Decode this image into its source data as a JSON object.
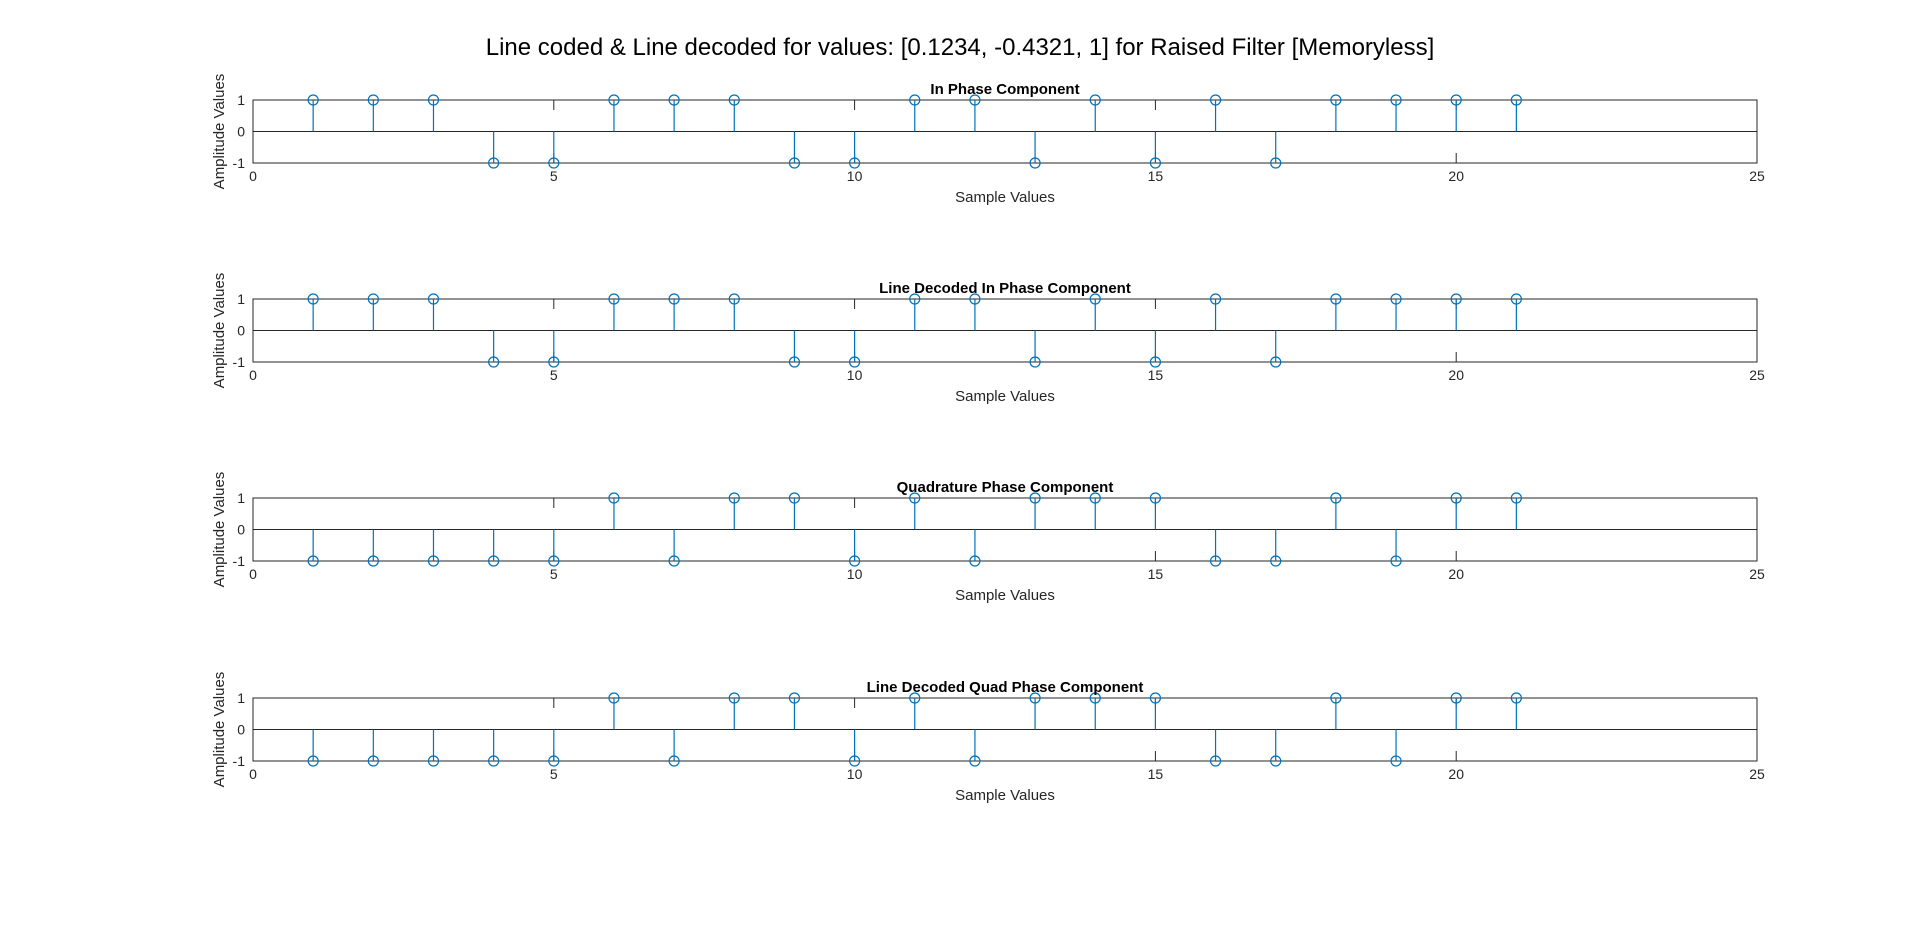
{
  "figure": {
    "title": "Line coded & Line decoded for values: [0.1234, -0.4321, 1] for Raised Filter [Memoryless]"
  },
  "colors": {
    "stem": "#0072BD",
    "axis": "#262626",
    "background": "#FFFFFF"
  },
  "chart_data": [
    {
      "type": "stem",
      "title": "In Phase Component",
      "xlabel": "Sample Values",
      "ylabel": "Amplitude Values",
      "xlim": [
        0,
        25
      ],
      "ylim": [
        -1,
        1
      ],
      "xticks": [
        0,
        5,
        10,
        15,
        20,
        25
      ],
      "yticks": [
        -1,
        0,
        1
      ],
      "x": [
        1,
        2,
        3,
        4,
        5,
        6,
        7,
        8,
        9,
        10,
        11,
        12,
        13,
        14,
        15,
        16,
        17,
        18,
        19,
        20,
        21
      ],
      "values": [
        1,
        1,
        1,
        -1,
        -1,
        1,
        1,
        1,
        -1,
        -1,
        1,
        1,
        -1,
        1,
        -1,
        1,
        -1,
        1,
        1,
        1,
        1
      ]
    },
    {
      "type": "stem",
      "title": "Line Decoded In Phase Component",
      "xlabel": "Sample Values",
      "ylabel": "Amplitude Values",
      "xlim": [
        0,
        25
      ],
      "ylim": [
        -1,
        1
      ],
      "xticks": [
        0,
        5,
        10,
        15,
        20,
        25
      ],
      "yticks": [
        -1,
        0,
        1
      ],
      "x": [
        1,
        2,
        3,
        4,
        5,
        6,
        7,
        8,
        9,
        10,
        11,
        12,
        13,
        14,
        15,
        16,
        17,
        18,
        19,
        20,
        21
      ],
      "values": [
        1,
        1,
        1,
        -1,
        -1,
        1,
        1,
        1,
        -1,
        -1,
        1,
        1,
        -1,
        1,
        -1,
        1,
        -1,
        1,
        1,
        1,
        1
      ]
    },
    {
      "type": "stem",
      "title": "Quadrature Phase Component",
      "xlabel": "Sample Values",
      "ylabel": "Amplitude Values",
      "xlim": [
        0,
        25
      ],
      "ylim": [
        -1,
        1
      ],
      "xticks": [
        0,
        5,
        10,
        15,
        20,
        25
      ],
      "yticks": [
        -1,
        0,
        1
      ],
      "x": [
        1,
        2,
        3,
        4,
        5,
        6,
        7,
        8,
        9,
        10,
        11,
        12,
        13,
        14,
        15,
        16,
        17,
        18,
        19,
        20,
        21
      ],
      "values": [
        -1,
        -1,
        -1,
        -1,
        -1,
        1,
        -1,
        1,
        1,
        -1,
        1,
        -1,
        1,
        1,
        1,
        -1,
        -1,
        1,
        -1,
        1,
        1
      ]
    },
    {
      "type": "stem",
      "title": "Line Decoded Quad Phase Component",
      "xlabel": "Sample Values",
      "ylabel": "Amplitude Values",
      "xlim": [
        0,
        25
      ],
      "ylim": [
        -1,
        1
      ],
      "xticks": [
        0,
        5,
        10,
        15,
        20,
        25
      ],
      "yticks": [
        -1,
        0,
        1
      ],
      "x": [
        1,
        2,
        3,
        4,
        5,
        6,
        7,
        8,
        9,
        10,
        11,
        12,
        13,
        14,
        15,
        16,
        17,
        18,
        19,
        20,
        21
      ],
      "values": [
        -1,
        -1,
        -1,
        -1,
        -1,
        1,
        -1,
        1,
        1,
        -1,
        1,
        -1,
        1,
        1,
        1,
        -1,
        -1,
        1,
        -1,
        1,
        1
      ]
    }
  ]
}
